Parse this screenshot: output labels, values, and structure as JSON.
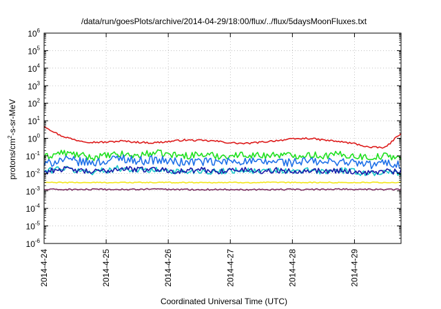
{
  "chart_data": {
    "type": "line",
    "title": "/data/run/goesPlots/archive/2014-04-29/18:00/flux/../flux/5daysMoonFluxes.txt",
    "xlabel": "Coordinated Universal Time (UTC)",
    "ylabel": {
      "prefix": "protons/cm",
      "sup": "2",
      "suffix": "-s-sr-MeV"
    },
    "y_scale": "log",
    "ylim": [
      1e-06,
      1000000
    ],
    "xlim": [
      "2014-04-24 00:00",
      "2014-04-29 18:00"
    ],
    "x_ticks": [
      "2014-4-24",
      "2014-4-25",
      "2014-4-26",
      "2014-4-27",
      "2014-4-28",
      "2014-4-29"
    ],
    "y_ticks": [
      {
        "base": "10",
        "exp": "-6"
      },
      {
        "base": "10",
        "exp": "-5"
      },
      {
        "base": "10",
        "exp": "-4"
      },
      {
        "base": "10",
        "exp": "-3"
      },
      {
        "base": "10",
        "exp": "-2"
      },
      {
        "base": "10",
        "exp": "-1"
      },
      {
        "base": "10",
        "exp": "0"
      },
      {
        "base": "10",
        "exp": "1"
      },
      {
        "base": "10",
        "exp": "2"
      },
      {
        "base": "10",
        "exp": "3"
      },
      {
        "base": "10",
        "exp": "4"
      },
      {
        "base": "10",
        "exp": "5"
      },
      {
        "base": "10",
        "exp": "6"
      }
    ],
    "grid": true,
    "x": [
      "2014-04-24 00:00",
      "2014-04-24 06:00",
      "2014-04-24 12:00",
      "2014-04-24 18:00",
      "2014-04-25 00:00",
      "2014-04-25 06:00",
      "2014-04-25 12:00",
      "2014-04-25 18:00",
      "2014-04-26 00:00",
      "2014-04-26 06:00",
      "2014-04-26 12:00",
      "2014-04-26 18:00",
      "2014-04-27 00:00",
      "2014-04-27 06:00",
      "2014-04-27 12:00",
      "2014-04-27 18:00",
      "2014-04-28 00:00",
      "2014-04-28 06:00",
      "2014-04-28 12:00",
      "2014-04-28 18:00",
      "2014-04-29 00:00",
      "2014-04-29 06:00",
      "2014-04-29 12:00",
      "2014-04-29 18:00"
    ],
    "series": [
      {
        "color": "#dd1a1a",
        "values": [
          5,
          1.5,
          0.8,
          0.6,
          0.6,
          0.7,
          0.6,
          0.55,
          0.65,
          0.8,
          0.75,
          0.7,
          0.55,
          0.5,
          0.6,
          0.75,
          0.9,
          1.0,
          0.8,
          0.65,
          0.5,
          0.3,
          0.3,
          2.0
        ]
      },
      {
        "color": "#1de01d",
        "values": [
          0.08,
          0.15,
          0.12,
          0.08,
          0.1,
          0.12,
          0.1,
          0.15,
          0.12,
          0.1,
          0.12,
          0.1,
          0.1,
          0.12,
          0.1,
          0.12,
          0.1,
          0.12,
          0.1,
          0.12,
          0.1,
          0.08,
          0.1,
          0.08
        ]
      },
      {
        "color": "#1e70e8",
        "values": [
          0.03,
          0.06,
          0.05,
          0.04,
          0.05,
          0.08,
          0.05,
          0.06,
          0.05,
          0.04,
          0.05,
          0.04,
          0.05,
          0.05,
          0.04,
          0.05,
          0.04,
          0.05,
          0.04,
          0.05,
          0.04,
          0.03,
          0.04,
          0.03
        ]
      },
      {
        "color": "#16c8c8",
        "values": [
          0.012,
          0.02,
          0.015,
          0.012,
          0.015,
          0.02,
          0.015,
          0.015,
          0.015,
          0.012,
          0.015,
          0.012,
          0.015,
          0.015,
          0.012,
          0.015,
          0.012,
          0.015,
          0.012,
          0.015,
          0.012,
          0.01,
          0.012,
          0.01
        ]
      },
      {
        "color": "#1a1aa8",
        "values": [
          0.012,
          0.018,
          0.015,
          0.012,
          0.014,
          0.02,
          0.016,
          0.018,
          0.015,
          0.013,
          0.016,
          0.013,
          0.015,
          0.016,
          0.013,
          0.015,
          0.013,
          0.016,
          0.013,
          0.015,
          0.012,
          0.011,
          0.013,
          0.012
        ]
      },
      {
        "color": "#f2e61a",
        "values": [
          0.003,
          0.003,
          0.003,
          0.003,
          0.003,
          0.003,
          0.003,
          0.003,
          0.003,
          0.003,
          0.003,
          0.003,
          0.003,
          0.003,
          0.003,
          0.003,
          0.003,
          0.003,
          0.003,
          0.003,
          0.003,
          0.003,
          0.003,
          0.003
        ]
      },
      {
        "color": "#7a2a5e",
        "values": [
          0.0012,
          0.0012,
          0.0012,
          0.0012,
          0.0012,
          0.0012,
          0.0012,
          0.0013,
          0.0012,
          0.0012,
          0.0012,
          0.0012,
          0.0012,
          0.0012,
          0.0012,
          0.0012,
          0.0012,
          0.0012,
          0.0012,
          0.0013,
          0.0012,
          0.0012,
          0.0012,
          0.0012
        ]
      }
    ]
  }
}
